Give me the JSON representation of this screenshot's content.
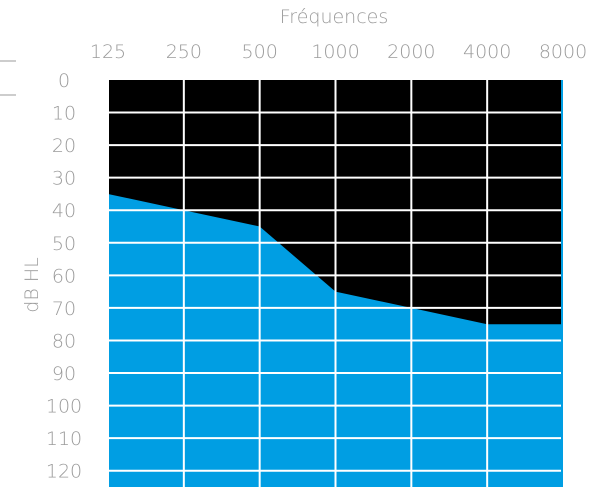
{
  "chart_data": {
    "type": "area",
    "title": "",
    "xlabel": "Fréquences",
    "ylabel": "dB HL",
    "x_axis_position": "top",
    "y_inverted": true,
    "x_scale": "log2",
    "x": [
      125,
      250,
      500,
      1000,
      2000,
      4000,
      8000
    ],
    "x_tick_labels": [
      "125",
      "250",
      "500",
      "1000",
      "2000",
      "4000",
      "8000"
    ],
    "y_ticks": [
      0,
      10,
      20,
      30,
      40,
      50,
      60,
      70,
      80,
      90,
      100,
      110,
      120
    ],
    "y_tick_labels": [
      "0",
      "10",
      "20",
      "30",
      "40",
      "50",
      "60",
      "70",
      "80",
      "90",
      "100",
      "110",
      "120"
    ],
    "ylim": [
      0,
      120
    ],
    "grid": true,
    "legend": "none",
    "series": [
      {
        "values": [
          30,
          35,
          40,
          60,
          65,
          70,
          70
        ]
      }
    ],
    "colors": {
      "background_panel": "#000000",
      "fill_area": "#009ee3",
      "grid": "#ffffff",
      "text": "#9b9b9b"
    }
  }
}
